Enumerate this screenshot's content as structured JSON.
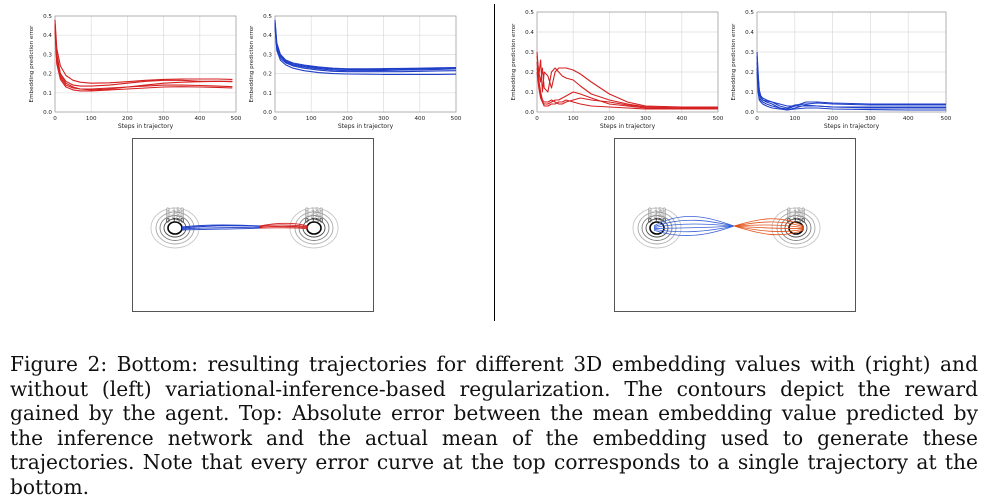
{
  "chart_data": [
    {
      "id": "top-left-a",
      "type": "line",
      "xlabel": "Steps in trajectory",
      "ylabel": "Embedding prediction error",
      "xlim": [
        0,
        500
      ],
      "ylim": [
        0,
        0.5
      ],
      "xticks": [
        "0",
        "100",
        "200",
        "300",
        "400",
        "500"
      ],
      "yticks": [
        "0.0",
        "0.1",
        "0.2",
        "0.3",
        "0.4",
        "0.5"
      ],
      "color": "#d42020",
      "series": [
        {
          "x": [
            0,
            5,
            15,
            30,
            50,
            70,
            100,
            150,
            200,
            250,
            300,
            350,
            400,
            450,
            490
          ],
          "y": [
            0.48,
            0.33,
            0.24,
            0.19,
            0.165,
            0.155,
            0.15,
            0.152,
            0.158,
            0.165,
            0.17,
            0.172,
            0.172,
            0.172,
            0.17
          ]
        },
        {
          "x": [
            0,
            5,
            15,
            30,
            50,
            70,
            100,
            150,
            200,
            250,
            300,
            350,
            400,
            450,
            490
          ],
          "y": [
            0.45,
            0.28,
            0.19,
            0.15,
            0.13,
            0.12,
            0.115,
            0.12,
            0.13,
            0.14,
            0.15,
            0.155,
            0.158,
            0.16,
            0.158
          ]
        },
        {
          "x": [
            0,
            5,
            15,
            30,
            50,
            70,
            100,
            150,
            200,
            250,
            300,
            350,
            400,
            450,
            490
          ],
          "y": [
            0.44,
            0.26,
            0.18,
            0.14,
            0.125,
            0.12,
            0.12,
            0.125,
            0.13,
            0.135,
            0.14,
            0.14,
            0.138,
            0.135,
            0.132
          ]
        },
        {
          "x": [
            0,
            5,
            15,
            30,
            50,
            70,
            100,
            150,
            200,
            250,
            300,
            350,
            400,
            450,
            490
          ],
          "y": [
            0.42,
            0.25,
            0.17,
            0.13,
            0.115,
            0.11,
            0.11,
            0.115,
            0.12,
            0.125,
            0.13,
            0.132,
            0.13,
            0.128,
            0.125
          ]
        },
        {
          "x": [
            0,
            5,
            15,
            30,
            50,
            70,
            100,
            150,
            200,
            250,
            300,
            350,
            400,
            450,
            490
          ],
          "y": [
            0.46,
            0.3,
            0.2,
            0.16,
            0.14,
            0.135,
            0.135,
            0.14,
            0.15,
            0.16,
            0.165,
            0.165,
            0.16,
            0.16,
            0.16
          ]
        }
      ]
    },
    {
      "id": "top-left-b",
      "type": "line",
      "xlabel": "Steps in trajectory",
      "ylabel": "Embedding prediction error",
      "xlim": [
        0,
        500
      ],
      "ylim": [
        0,
        0.5
      ],
      "xticks": [
        "0",
        "100",
        "200",
        "300",
        "400",
        "500"
      ],
      "yticks": [
        "0.0",
        "0.1",
        "0.2",
        "0.3",
        "0.4",
        "0.5"
      ],
      "color": "#1f3fc8",
      "series": [
        {
          "x": [
            0,
            5,
            15,
            30,
            50,
            80,
            120,
            160,
            200,
            250,
            300,
            350,
            400,
            450,
            500
          ],
          "y": [
            0.48,
            0.36,
            0.3,
            0.27,
            0.255,
            0.245,
            0.235,
            0.228,
            0.225,
            0.225,
            0.226,
            0.227,
            0.228,
            0.23,
            0.232
          ]
        },
        {
          "x": [
            0,
            5,
            15,
            30,
            50,
            80,
            120,
            160,
            200,
            250,
            300,
            350,
            400,
            450,
            500
          ],
          "y": [
            0.46,
            0.34,
            0.29,
            0.26,
            0.245,
            0.235,
            0.225,
            0.218,
            0.215,
            0.215,
            0.216,
            0.218,
            0.22,
            0.222,
            0.225
          ]
        },
        {
          "x": [
            0,
            5,
            15,
            30,
            50,
            80,
            120,
            160,
            200,
            250,
            300,
            350,
            400,
            450,
            500
          ],
          "y": [
            0.44,
            0.33,
            0.28,
            0.255,
            0.24,
            0.228,
            0.218,
            0.212,
            0.21,
            0.21,
            0.21,
            0.21,
            0.212,
            0.214,
            0.215
          ]
        },
        {
          "x": [
            0,
            5,
            15,
            30,
            50,
            80,
            120,
            160,
            200,
            250,
            300,
            350,
            400,
            450,
            500
          ],
          "y": [
            0.45,
            0.32,
            0.27,
            0.245,
            0.228,
            0.215,
            0.205,
            0.2,
            0.198,
            0.197,
            0.196,
            0.196,
            0.196,
            0.196,
            0.197
          ]
        },
        {
          "x": [
            0,
            5,
            15,
            30,
            50,
            80,
            120,
            160,
            200,
            250,
            300,
            350,
            400,
            450,
            500
          ],
          "y": [
            0.47,
            0.35,
            0.295,
            0.265,
            0.25,
            0.24,
            0.23,
            0.224,
            0.222,
            0.221,
            0.222,
            0.223,
            0.225,
            0.227,
            0.229
          ]
        }
      ]
    },
    {
      "id": "top-right-a",
      "type": "line",
      "xlabel": "Steps in trajectory",
      "ylabel": "Embedding prediction error",
      "xlim": [
        0,
        500
      ],
      "ylim": [
        0,
        0.5
      ],
      "xticks": [
        "0",
        "100",
        "200",
        "300",
        "400",
        "500"
      ],
      "yticks": [
        "0.0",
        "0.1",
        "0.2",
        "0.3",
        "0.4",
        "0.5"
      ],
      "color": "#d42020",
      "series": [
        {
          "x": [
            0,
            5,
            10,
            15,
            20,
            30,
            40,
            50,
            60,
            70,
            80,
            100,
            120,
            150,
            200,
            250,
            300,
            400,
            500
          ],
          "y": [
            0.3,
            0.18,
            0.26,
            0.1,
            0.2,
            0.18,
            0.12,
            0.2,
            0.22,
            0.22,
            0.22,
            0.21,
            0.19,
            0.15,
            0.09,
            0.05,
            0.03,
            0.025,
            0.025
          ]
        },
        {
          "x": [
            0,
            5,
            10,
            15,
            20,
            30,
            40,
            50,
            60,
            70,
            80,
            100,
            120,
            150,
            200,
            250,
            300,
            400,
            500
          ],
          "y": [
            0.28,
            0.2,
            0.15,
            0.22,
            0.12,
            0.1,
            0.2,
            0.22,
            0.2,
            0.18,
            0.17,
            0.16,
            0.13,
            0.09,
            0.06,
            0.04,
            0.025,
            0.02,
            0.02
          ]
        },
        {
          "x": [
            0,
            5,
            10,
            15,
            20,
            30,
            40,
            50,
            60,
            70,
            80,
            100,
            120,
            150,
            200,
            250,
            300,
            400,
            500
          ],
          "y": [
            0.25,
            0.15,
            0.08,
            0.05,
            0.04,
            0.04,
            0.05,
            0.06,
            0.06,
            0.07,
            0.08,
            0.1,
            0.09,
            0.07,
            0.04,
            0.03,
            0.02,
            0.018,
            0.02
          ]
        },
        {
          "x": [
            0,
            5,
            10,
            15,
            20,
            30,
            40,
            50,
            60,
            70,
            80,
            100,
            120,
            150,
            200,
            250,
            300,
            400,
            500
          ],
          "y": [
            0.2,
            0.12,
            0.07,
            0.05,
            0.03,
            0.03,
            0.04,
            0.04,
            0.05,
            0.05,
            0.06,
            0.05,
            0.04,
            0.03,
            0.025,
            0.02,
            0.015,
            0.015,
            0.015
          ]
        },
        {
          "x": [
            0,
            5,
            10,
            15,
            20,
            30,
            40,
            50,
            60,
            70,
            80,
            100,
            120,
            150,
            200,
            250,
            300,
            400,
            500
          ],
          "y": [
            0.22,
            0.16,
            0.1,
            0.06,
            0.05,
            0.05,
            0.06,
            0.05,
            0.04,
            0.04,
            0.05,
            0.06,
            0.07,
            0.06,
            0.05,
            0.035,
            0.025,
            0.02,
            0.02
          ]
        }
      ]
    },
    {
      "id": "top-right-b",
      "type": "line",
      "xlabel": "Steps in trajectory",
      "ylabel": "Embedding prediction error",
      "xlim": [
        0,
        500
      ],
      "ylim": [
        0,
        0.5
      ],
      "xticks": [
        "0",
        "100",
        "200",
        "300",
        "400",
        "500"
      ],
      "yticks": [
        "0.0",
        "0.1",
        "0.2",
        "0.3",
        "0.4",
        "0.5"
      ],
      "color": "#1f3fc8",
      "series": [
        {
          "x": [
            0,
            3,
            6,
            10,
            15,
            25,
            40,
            60,
            80,
            100,
            130,
            160,
            200,
            300,
            400,
            500
          ],
          "y": [
            0.3,
            0.2,
            0.1,
            0.08,
            0.06,
            0.05,
            0.04,
            0.02,
            0.01,
            0.02,
            0.035,
            0.03,
            0.025,
            0.02,
            0.02,
            0.02
          ]
        },
        {
          "x": [
            0,
            3,
            6,
            10,
            15,
            25,
            40,
            60,
            80,
            100,
            130,
            160,
            200,
            300,
            400,
            500
          ],
          "y": [
            0.25,
            0.15,
            0.09,
            0.07,
            0.06,
            0.055,
            0.05,
            0.03,
            0.02,
            0.035,
            0.04,
            0.045,
            0.04,
            0.035,
            0.035,
            0.035
          ]
        },
        {
          "x": [
            0,
            3,
            6,
            10,
            15,
            25,
            40,
            60,
            80,
            100,
            130,
            160,
            200,
            300,
            400,
            500
          ],
          "y": [
            0.22,
            0.12,
            0.07,
            0.06,
            0.05,
            0.04,
            0.03,
            0.02,
            0.015,
            0.03,
            0.05,
            0.05,
            0.045,
            0.04,
            0.04,
            0.04
          ]
        },
        {
          "x": [
            0,
            3,
            6,
            10,
            15,
            25,
            40,
            60,
            80,
            100,
            130,
            160,
            200,
            300,
            400,
            500
          ],
          "y": [
            0.2,
            0.1,
            0.06,
            0.05,
            0.04,
            0.03,
            0.02,
            0.015,
            0.01,
            0.015,
            0.02,
            0.02,
            0.015,
            0.012,
            0.01,
            0.01
          ]
        },
        {
          "x": [
            0,
            3,
            6,
            10,
            15,
            25,
            40,
            60,
            80,
            100,
            130,
            160,
            200,
            300,
            400,
            500
          ],
          "y": [
            0.28,
            0.18,
            0.11,
            0.08,
            0.07,
            0.06,
            0.05,
            0.04,
            0.03,
            0.03,
            0.03,
            0.03,
            0.025,
            0.025,
            0.025,
            0.025
          ]
        }
      ]
    }
  ],
  "trajectory_plots": {
    "contour_labels": [
      "0.150",
      "0.300",
      "0.450",
      "0.600",
      "0.750"
    ],
    "left_colors": {
      "blue": "#1f3fc8",
      "red": "#d42020"
    },
    "right_colors": {
      "blue": "#3a62d6",
      "red": "#e2541c"
    }
  },
  "caption": "Figure 2: Bottom: resulting trajectories for different 3D embedding values with (right) and without (left) variational-inference-based regularization. The contours depict the reward gained by the agent. Top: Absolute error between the mean embedding value predicted by the inference network and the actual mean of the embedding used to generate these trajectories. Note that every error curve at the top corresponds to a single trajectory at the bottom."
}
